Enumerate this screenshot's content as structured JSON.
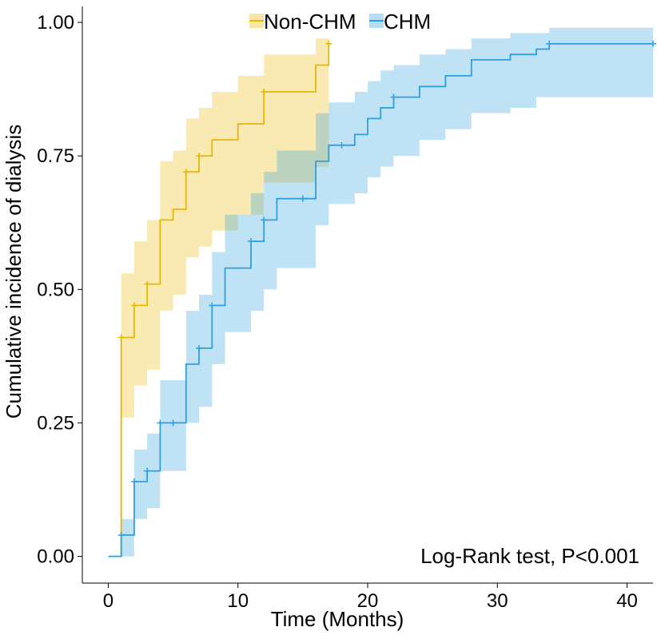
{
  "chart_data": {
    "type": "line",
    "title": "",
    "xlabel": "Time (Months)",
    "ylabel": "Cumulative incidence of dialysis",
    "xlim": [
      -2,
      42
    ],
    "ylim": [
      -0.05,
      1.03
    ],
    "xticks": [
      0,
      10,
      20,
      30,
      40
    ],
    "xtick_labels": [
      "0",
      "10",
      "20",
      "30",
      "40"
    ],
    "yticks": [
      0,
      0.25,
      0.5,
      0.75,
      1.0
    ],
    "ytick_labels": [
      "0.00",
      "0.25",
      "0.50",
      "0.75",
      "1.00"
    ],
    "grid": false,
    "legend_position": "top-center",
    "annotation": "Log-Rank test, P<0.001",
    "series": [
      {
        "name": "Non-CHM",
        "color": "#E7B800",
        "x": [
          0,
          1,
          2,
          3,
          4,
          5,
          6,
          7,
          8,
          10,
          12,
          16,
          17
        ],
        "y": [
          0,
          0.41,
          0.47,
          0.51,
          0.63,
          0.65,
          0.72,
          0.75,
          0.78,
          0.81,
          0.87,
          0.92,
          0.96
        ],
        "lower": [
          0,
          0.26,
          0.32,
          0.35,
          0.46,
          0.49,
          0.56,
          0.58,
          0.61,
          0.64,
          0.7,
          0.73,
          0.73
        ],
        "upper": [
          0,
          0.53,
          0.59,
          0.63,
          0.74,
          0.76,
          0.82,
          0.84,
          0.87,
          0.9,
          0.94,
          0.97,
          0.97
        ],
        "censor_x": [
          1,
          2,
          3,
          6,
          7,
          12,
          17
        ],
        "censor_y": [
          0.41,
          0.47,
          0.51,
          0.72,
          0.75,
          0.87,
          0.96
        ]
      },
      {
        "name": "CHM",
        "color": "#2E9FDF",
        "x": [
          0,
          1,
          2,
          3,
          4,
          6,
          7,
          8,
          9,
          11,
          12,
          13,
          16,
          17,
          19,
          20,
          21,
          22,
          24,
          26,
          28,
          31,
          33,
          34,
          42
        ],
        "y": [
          0,
          0.04,
          0.14,
          0.16,
          0.25,
          0.36,
          0.39,
          0.47,
          0.54,
          0.59,
          0.63,
          0.67,
          0.74,
          0.77,
          0.79,
          0.82,
          0.84,
          0.86,
          0.88,
          0.9,
          0.93,
          0.94,
          0.95,
          0.96,
          0.96
        ],
        "lower": [
          0,
          0,
          0.07,
          0.09,
          0.16,
          0.25,
          0.28,
          0.36,
          0.42,
          0.46,
          0.5,
          0.54,
          0.62,
          0.66,
          0.68,
          0.71,
          0.73,
          0.75,
          0.78,
          0.8,
          0.83,
          0.84,
          0.86,
          0.86,
          0.86
        ],
        "upper": [
          0,
          0.07,
          0.2,
          0.23,
          0.33,
          0.46,
          0.49,
          0.57,
          0.64,
          0.68,
          0.72,
          0.76,
          0.83,
          0.85,
          0.87,
          0.89,
          0.91,
          0.92,
          0.94,
          0.95,
          0.97,
          0.98,
          0.98,
          0.99,
          0.99
        ],
        "censor_x": [
          1,
          2,
          3,
          4,
          5,
          7,
          8,
          11,
          12,
          15,
          18,
          22,
          34,
          42
        ],
        "censor_y": [
          0.04,
          0.14,
          0.16,
          0.25,
          0.25,
          0.39,
          0.47,
          0.59,
          0.63,
          0.67,
          0.77,
          0.86,
          0.96,
          0.96
        ]
      }
    ]
  }
}
